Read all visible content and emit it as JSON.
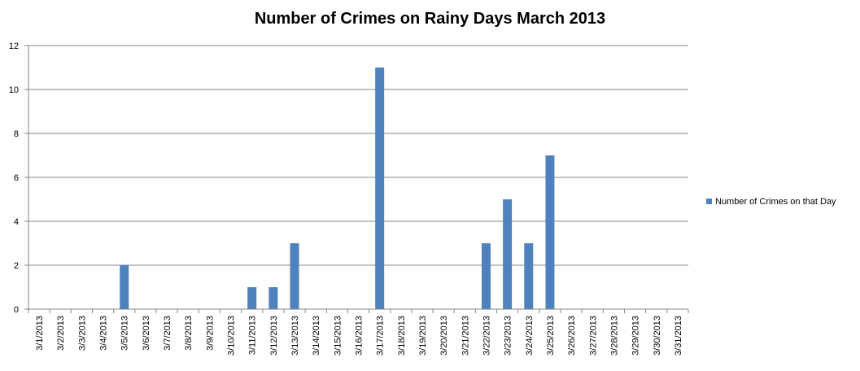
{
  "chart_data": {
    "type": "bar",
    "title": "Number of Crimes on Rainy Days March 2013",
    "xlabel": "",
    "ylabel": "",
    "categories": [
      "3/1/2013",
      "3/2/2013",
      "3/3/2013",
      "3/4/2013",
      "3/5/2013",
      "3/6/2013",
      "3/7/2013",
      "3/8/2013",
      "3/9/2013",
      "3/10/2013",
      "3/11/2013",
      "3/12/2013",
      "3/13/2013",
      "3/14/2013",
      "3/15/2013",
      "3/16/2013",
      "3/17/2013",
      "3/18/2013",
      "3/19/2013",
      "3/20/2013",
      "3/21/2013",
      "3/22/2013",
      "3/23/2013",
      "3/24/2013",
      "3/25/2013",
      "3/26/2013",
      "3/27/2013",
      "3/28/2013",
      "3/29/2013",
      "3/30/2013",
      "3/31/2013"
    ],
    "series": [
      {
        "name": "Number of Crimes on that Day",
        "color": "#4f81bd",
        "values": [
          0,
          0,
          0,
          0,
          2,
          0,
          0,
          0,
          0,
          0,
          1,
          1,
          3,
          0,
          0,
          0,
          11,
          0,
          0,
          0,
          0,
          3,
          5,
          3,
          7,
          0,
          0,
          0,
          0,
          0,
          0
        ]
      }
    ],
    "ylim": [
      0,
      12
    ],
    "yticks": [
      0,
      2,
      4,
      6,
      8,
      10,
      12
    ],
    "grid": true,
    "legend_position": "right",
    "gridline_color": "#868686",
    "axis_color": "#868686"
  }
}
